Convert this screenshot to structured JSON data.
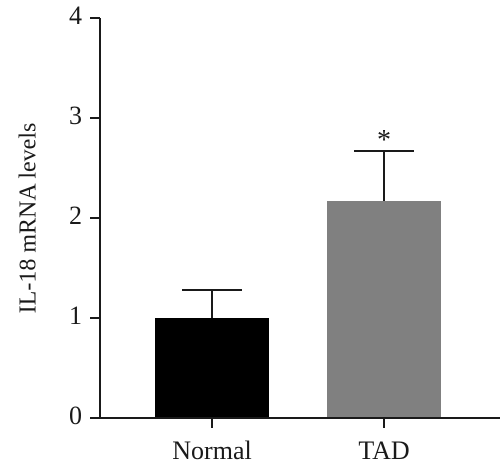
{
  "chart_data": {
    "type": "bar",
    "categories": [
      "Normal",
      "TAD"
    ],
    "values": [
      1.0,
      2.17
    ],
    "errors": [
      0.28,
      0.5
    ],
    "colors": [
      "#000000",
      "#808080"
    ],
    "annotations": [
      "",
      "*"
    ],
    "title": "",
    "xlabel": "",
    "ylabel": "IL-18 mRNA levels",
    "ylim": [
      0,
      4
    ],
    "yticks": [
      "0",
      "1",
      "2",
      "3",
      "4"
    ],
    "grid": false,
    "legend": "none"
  }
}
